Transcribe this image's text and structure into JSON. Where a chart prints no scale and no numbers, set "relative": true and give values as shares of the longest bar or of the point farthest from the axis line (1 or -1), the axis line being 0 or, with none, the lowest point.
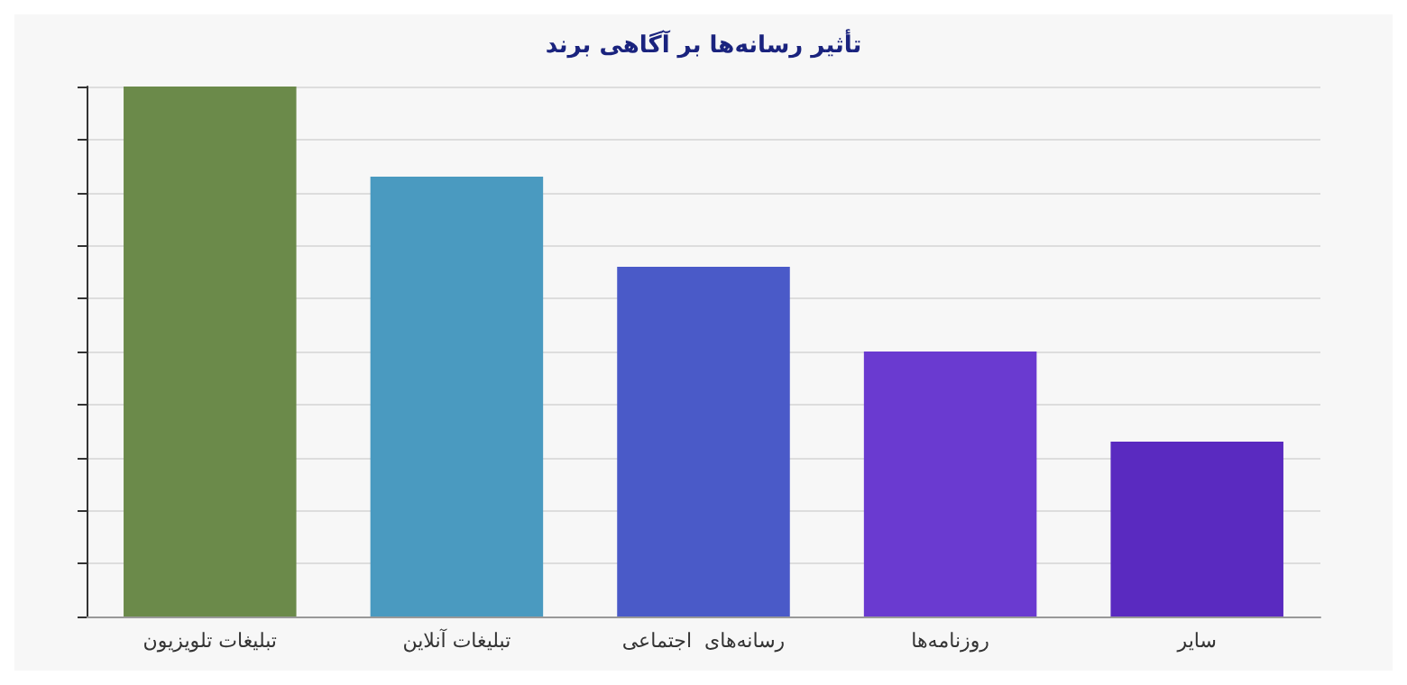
{
  "chart_data": {
    "type": "bar",
    "title": "تأثیر رسانه‌ها بر آگاهی برند",
    "categories": [
      "تبلیغات تلویزیون",
      "تبلیغات آنلاین",
      "رسانه‌های  اجتماعی",
      "روزنامه‌ها",
      "سایر"
    ],
    "values": [
      1,
      0.83,
      0.66,
      0.5,
      0.33
    ],
    "colors": [
      "#6b8a4a",
      "#4a9ac0",
      "#4a5ac8",
      "#6a3ad0",
      "#5a2ac0"
    ],
    "relative": true,
    "grid": true
  }
}
